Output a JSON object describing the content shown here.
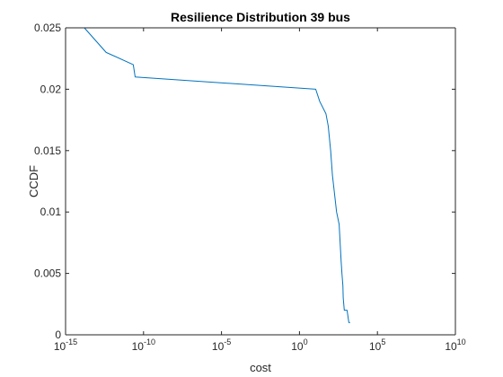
{
  "chart_data": {
    "type": "line",
    "title": "Resilience Distribution 39 bus",
    "xlabel": "cost",
    "ylabel": "CCDF",
    "x_scale": "log",
    "x_range": [
      1e-15,
      10000000000.0
    ],
    "y_range": [
      0,
      0.025
    ],
    "grid": false,
    "x_ticks": [
      {
        "value": 1e-15,
        "base": "10",
        "exp": "-15"
      },
      {
        "value": 1e-10,
        "base": "10",
        "exp": "-10"
      },
      {
        "value": 1e-05,
        "base": "10",
        "exp": "-5"
      },
      {
        "value": 1,
        "base": "10",
        "exp": "0"
      },
      {
        "value": 100000.0,
        "base": "10",
        "exp": "5"
      },
      {
        "value": 10000000000.0,
        "base": "10",
        "exp": "10"
      }
    ],
    "y_ticks": [
      {
        "value": 0,
        "label": "0"
      },
      {
        "value": 0.005,
        "label": "0.005"
      },
      {
        "value": 0.01,
        "label": "0.01"
      },
      {
        "value": 0.015,
        "label": "0.015"
      },
      {
        "value": 0.02,
        "label": "0.02"
      },
      {
        "value": 0.025,
        "label": "0.025"
      }
    ],
    "series": [
      {
        "color": "#0072BD",
        "x": [
          1.6e-14,
          4e-13,
          2.2e-11,
          2.9e-11,
          11.0,
          20.0,
          50.0,
          70.0,
          100.0,
          130.0,
          240.0,
          350.0,
          470.0,
          530.0,
          610.0,
          640.0,
          750.0,
          1130.0,
          1470.0,
          1760.0
        ],
        "y": [
          0.025,
          0.023,
          0.022,
          0.021,
          0.02,
          0.019,
          0.018,
          0.017,
          0.015,
          0.013,
          0.01,
          0.009,
          0.006,
          0.005,
          0.004,
          0.003,
          0.002,
          0.002,
          0.001,
          0.001
        ]
      }
    ]
  }
}
